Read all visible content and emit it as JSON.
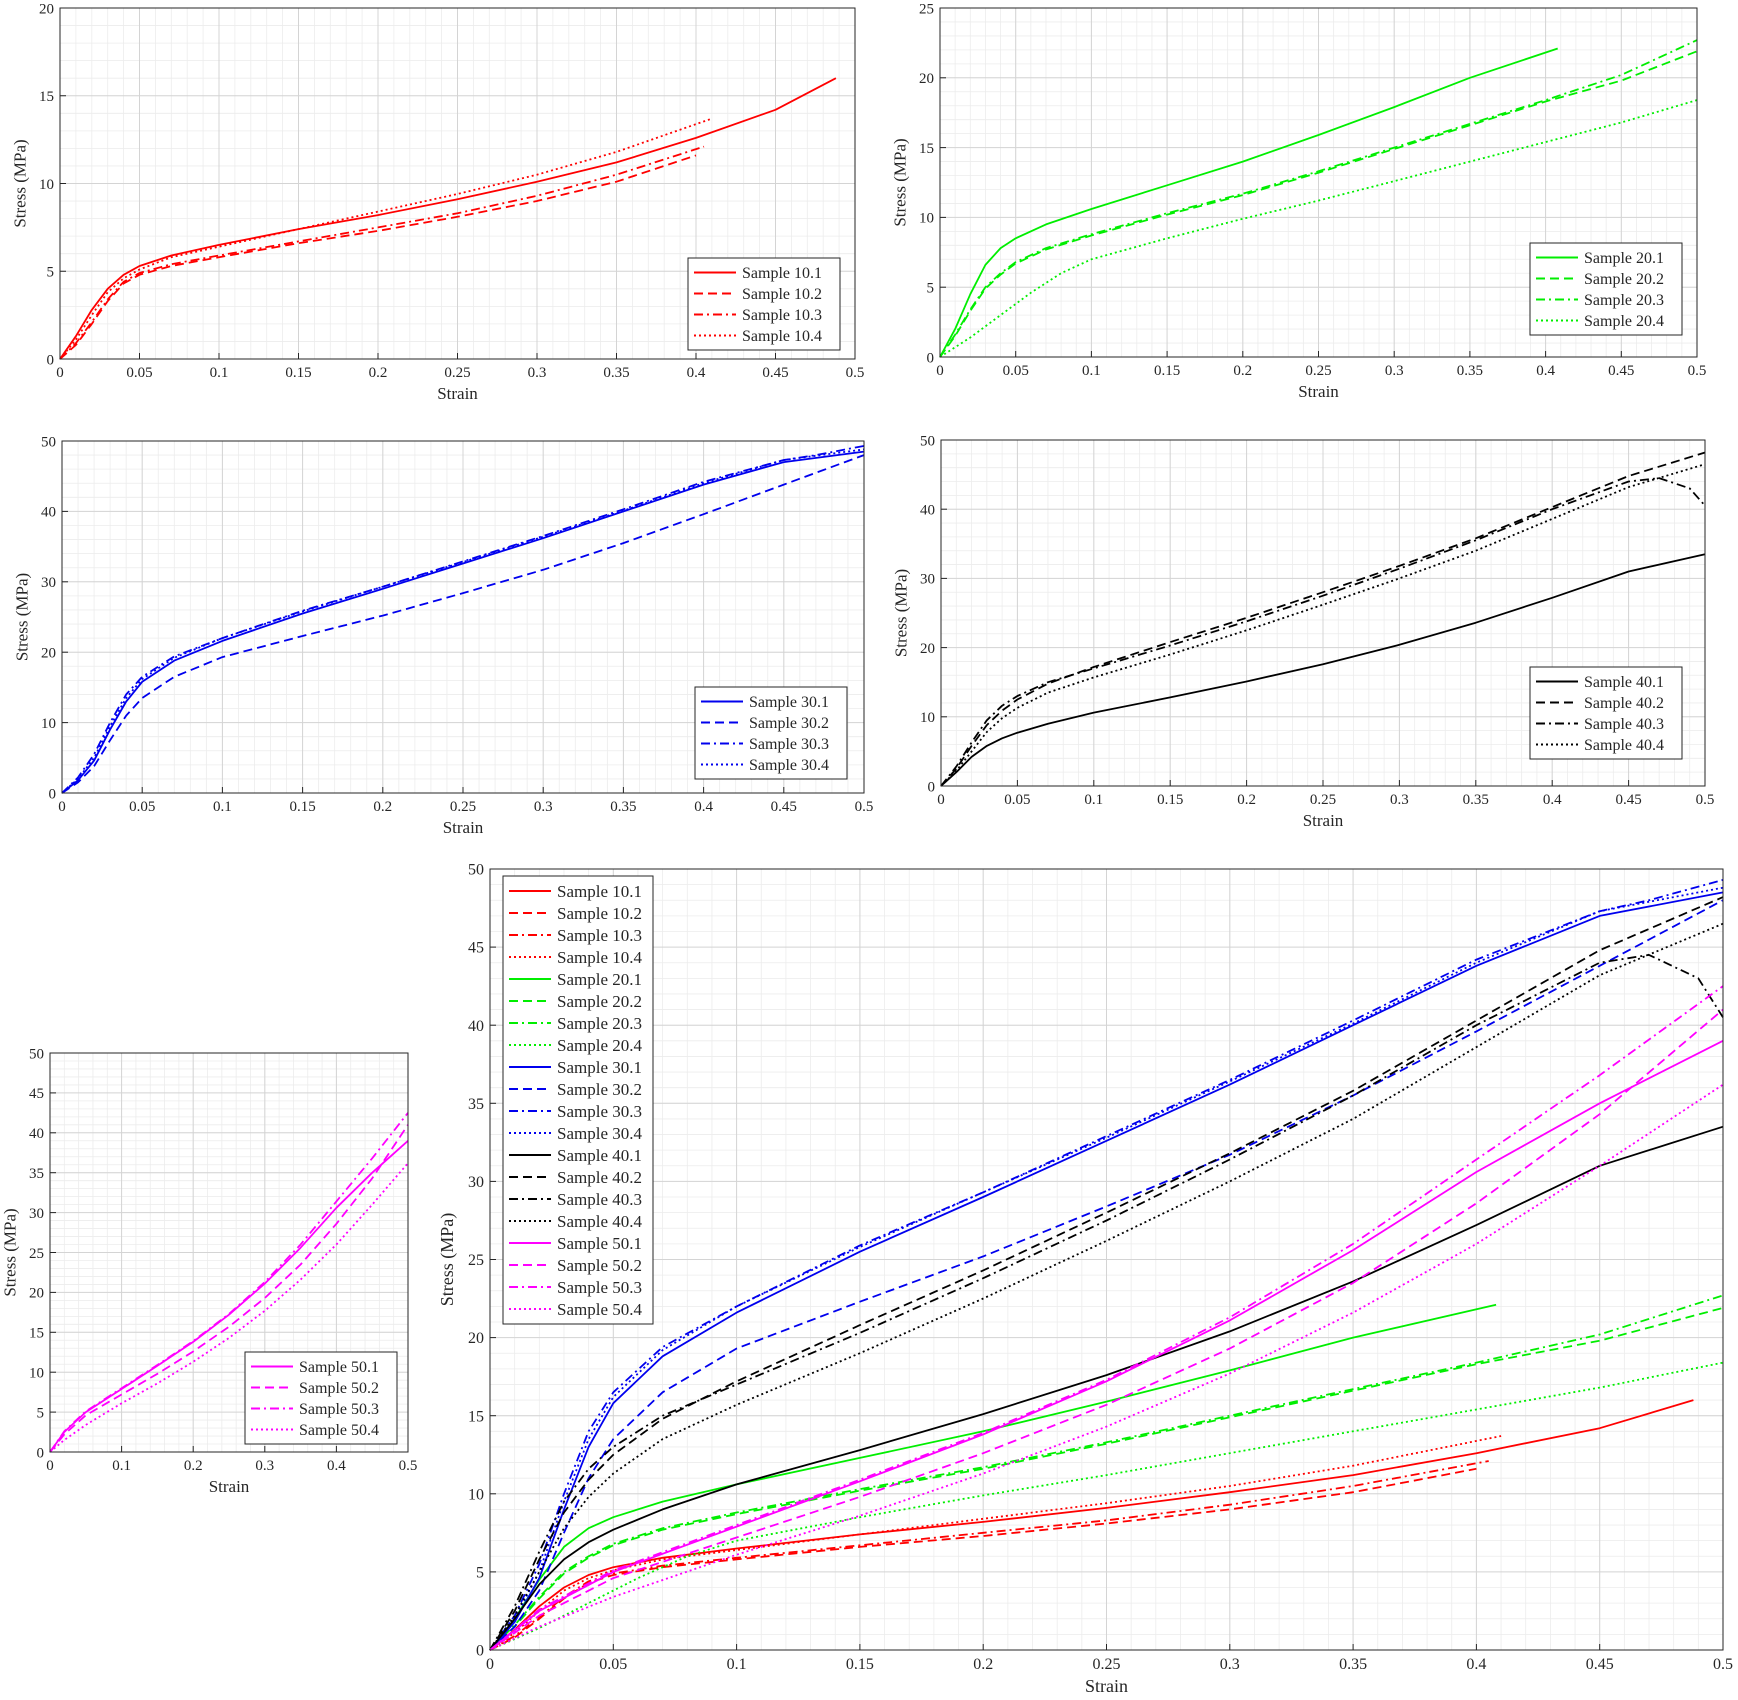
{
  "chart_data": [
    {
      "type": "line",
      "xlabel": "Strain",
      "ylabel": "Stress (MPa)",
      "xlim": [
        0,
        0.5
      ],
      "ylim": [
        0,
        20
      ],
      "xticks": [
        0,
        0.05,
        0.1,
        0.15,
        0.2,
        0.25,
        0.3,
        0.35,
        0.4,
        0.45,
        0.5
      ],
      "yticks": [
        0,
        5,
        10,
        15,
        20
      ],
      "grid": "major and minor",
      "legend_position": "bottom-right",
      "series": [
        {
          "name": "Sample 10.1",
          "color": "#ff0000",
          "style": "solid",
          "x": [
            0,
            0.01,
            0.02,
            0.03,
            0.04,
            0.05,
            0.07,
            0.1,
            0.15,
            0.2,
            0.25,
            0.3,
            0.35,
            0.4,
            0.45,
            0.488
          ],
          "y": [
            0,
            1.3,
            2.8,
            4.0,
            4.8,
            5.3,
            5.9,
            6.5,
            7.4,
            8.2,
            9.1,
            10.1,
            11.2,
            12.6,
            14.2,
            16.0
          ]
        },
        {
          "name": "Sample 10.2",
          "color": "#ff0000",
          "style": "dashed",
          "x": [
            0,
            0.01,
            0.02,
            0.03,
            0.04,
            0.05,
            0.07,
            0.1,
            0.15,
            0.2,
            0.25,
            0.3,
            0.35,
            0.4
          ],
          "y": [
            0,
            0.8,
            2.0,
            3.3,
            4.3,
            4.8,
            5.3,
            5.8,
            6.6,
            7.3,
            8.1,
            9.0,
            10.1,
            11.6
          ]
        },
        {
          "name": "Sample 10.3",
          "color": "#ff0000",
          "style": "dashdot",
          "x": [
            0,
            0.01,
            0.02,
            0.03,
            0.04,
            0.05,
            0.07,
            0.1,
            0.15,
            0.2,
            0.25,
            0.3,
            0.35,
            0.405
          ],
          "y": [
            0,
            0.9,
            2.1,
            3.4,
            4.4,
            4.9,
            5.4,
            5.9,
            6.7,
            7.5,
            8.3,
            9.3,
            10.5,
            12.1
          ]
        },
        {
          "name": "Sample 10.4",
          "color": "#ff0000",
          "style": "dotted",
          "x": [
            0,
            0.01,
            0.02,
            0.03,
            0.04,
            0.05,
            0.07,
            0.1,
            0.15,
            0.2,
            0.25,
            0.3,
            0.35,
            0.41
          ],
          "y": [
            0,
            1.1,
            2.5,
            3.8,
            4.6,
            5.1,
            5.8,
            6.4,
            7.4,
            8.4,
            9.4,
            10.5,
            11.8,
            13.7
          ]
        }
      ]
    },
    {
      "type": "line",
      "xlabel": "Strain",
      "ylabel": "Stress (MPa)",
      "xlim": [
        0,
        0.5
      ],
      "ylim": [
        0,
        25
      ],
      "xticks": [
        0,
        0.05,
        0.1,
        0.15,
        0.2,
        0.25,
        0.3,
        0.35,
        0.4,
        0.45,
        0.5
      ],
      "yticks": [
        0,
        5,
        10,
        15,
        20,
        25
      ],
      "grid": "major and minor",
      "legend_position": "bottom-right",
      "series": [
        {
          "name": "Sample 20.1",
          "color": "#00ee00",
          "style": "solid",
          "x": [
            0,
            0.01,
            0.02,
            0.03,
            0.04,
            0.05,
            0.07,
            0.1,
            0.15,
            0.2,
            0.25,
            0.3,
            0.35,
            0.408
          ],
          "y": [
            0,
            2.0,
            4.5,
            6.6,
            7.8,
            8.5,
            9.5,
            10.6,
            12.3,
            14.0,
            15.9,
            17.9,
            20.0,
            22.1
          ]
        },
        {
          "name": "Sample 20.2",
          "color": "#00ee00",
          "style": "dashed",
          "x": [
            0,
            0.01,
            0.02,
            0.03,
            0.04,
            0.05,
            0.07,
            0.1,
            0.15,
            0.2,
            0.25,
            0.3,
            0.35,
            0.4,
            0.45,
            0.5
          ],
          "y": [
            0,
            1.5,
            3.3,
            4.9,
            5.9,
            6.7,
            7.7,
            8.7,
            10.2,
            11.6,
            13.2,
            14.9,
            16.6,
            18.3,
            19.8,
            21.9
          ]
        },
        {
          "name": "Sample 20.3",
          "color": "#00ee00",
          "style": "dashdot",
          "x": [
            0,
            0.01,
            0.02,
            0.03,
            0.04,
            0.05,
            0.07,
            0.1,
            0.15,
            0.2,
            0.25,
            0.3,
            0.35,
            0.4,
            0.45,
            0.5
          ],
          "y": [
            0,
            1.6,
            3.4,
            5.0,
            6.0,
            6.8,
            7.8,
            8.8,
            10.3,
            11.7,
            13.3,
            15.0,
            16.7,
            18.4,
            20.2,
            22.7
          ]
        },
        {
          "name": "Sample 20.4",
          "color": "#00ee00",
          "style": "dotted",
          "x": [
            0,
            0.02,
            0.04,
            0.06,
            0.08,
            0.1,
            0.15,
            0.2,
            0.25,
            0.3,
            0.35,
            0.4,
            0.45,
            0.5
          ],
          "y": [
            0,
            1.4,
            3.0,
            4.6,
            6.0,
            7.0,
            8.5,
            9.9,
            11.2,
            12.6,
            14.0,
            15.4,
            16.8,
            18.4
          ]
        }
      ]
    },
    {
      "type": "line",
      "xlabel": "Strain",
      "ylabel": "Stress (MPa)",
      "xlim": [
        0,
        0.5
      ],
      "ylim": [
        0,
        50
      ],
      "xticks": [
        0,
        0.05,
        0.1,
        0.15,
        0.2,
        0.25,
        0.3,
        0.35,
        0.4,
        0.45,
        0.5
      ],
      "yticks": [
        0,
        10,
        20,
        30,
        40,
        50
      ],
      "grid": "major and minor",
      "legend_position": "bottom-right",
      "series": [
        {
          "name": "Sample 30.1",
          "color": "#0000ee",
          "style": "solid",
          "x": [
            0,
            0.01,
            0.02,
            0.03,
            0.04,
            0.05,
            0.07,
            0.1,
            0.15,
            0.2,
            0.25,
            0.3,
            0.35,
            0.4,
            0.45,
            0.5
          ],
          "y": [
            0,
            1.8,
            4.6,
            9.0,
            13.0,
            15.8,
            18.8,
            21.6,
            25.5,
            29.0,
            32.6,
            36.2,
            40.0,
            43.8,
            47.0,
            48.5
          ]
        },
        {
          "name": "Sample 30.2",
          "color": "#0000ee",
          "style": "dashed",
          "x": [
            0,
            0.01,
            0.02,
            0.03,
            0.04,
            0.05,
            0.07,
            0.1,
            0.15,
            0.2,
            0.25,
            0.3,
            0.35,
            0.4,
            0.45,
            0.5
          ],
          "y": [
            0,
            1.5,
            3.8,
            7.5,
            11.0,
            13.5,
            16.5,
            19.3,
            22.3,
            25.2,
            28.4,
            31.7,
            35.5,
            39.6,
            43.8,
            48.0
          ]
        },
        {
          "name": "Sample 30.3",
          "color": "#0000ee",
          "style": "dashdot",
          "x": [
            0,
            0.01,
            0.02,
            0.03,
            0.04,
            0.05,
            0.07,
            0.1,
            0.15,
            0.2,
            0.25,
            0.3,
            0.35,
            0.4,
            0.45,
            0.47,
            0.5
          ],
          "y": [
            0,
            2.2,
            5.5,
            10.0,
            14.0,
            16.5,
            19.4,
            22.0,
            25.9,
            29.3,
            32.9,
            36.5,
            40.3,
            44.2,
            47.3,
            48.0,
            49.3
          ]
        },
        {
          "name": "Sample 30.4",
          "color": "#0000ee",
          "style": "dotted",
          "x": [
            0,
            0.01,
            0.02,
            0.03,
            0.04,
            0.05,
            0.07,
            0.1,
            0.15,
            0.2,
            0.25,
            0.3,
            0.35,
            0.4,
            0.45,
            0.5
          ],
          "y": [
            0,
            2.0,
            5.0,
            9.5,
            13.5,
            16.2,
            19.2,
            22.0,
            25.8,
            29.3,
            32.8,
            36.4,
            40.1,
            44.0,
            47.3,
            48.8
          ]
        }
      ]
    },
    {
      "type": "line",
      "xlabel": "Strain",
      "ylabel": "Stress (MPa)",
      "xlim": [
        0,
        0.5
      ],
      "ylim": [
        0,
        50
      ],
      "xticks": [
        0,
        0.05,
        0.1,
        0.15,
        0.2,
        0.25,
        0.3,
        0.35,
        0.4,
        0.45,
        0.5
      ],
      "yticks": [
        0,
        10,
        20,
        30,
        40,
        50
      ],
      "grid": "major and minor",
      "legend_position": "bottom-right",
      "series": [
        {
          "name": "Sample 40.1",
          "color": "#000000",
          "style": "solid",
          "x": [
            0,
            0.01,
            0.02,
            0.03,
            0.04,
            0.05,
            0.07,
            0.1,
            0.15,
            0.2,
            0.25,
            0.3,
            0.35,
            0.4,
            0.45,
            0.5
          ],
          "y": [
            0,
            2.0,
            4.2,
            5.8,
            6.9,
            7.7,
            9.0,
            10.6,
            12.8,
            15.1,
            17.6,
            20.4,
            23.6,
            27.2,
            31.0,
            33.5
          ]
        },
        {
          "name": "Sample 40.2",
          "color": "#000000",
          "style": "dashed",
          "x": [
            0,
            0.01,
            0.02,
            0.03,
            0.04,
            0.05,
            0.07,
            0.1,
            0.15,
            0.2,
            0.25,
            0.3,
            0.35,
            0.4,
            0.45,
            0.5
          ],
          "y": [
            0,
            2.5,
            5.8,
            8.8,
            10.9,
            12.5,
            14.8,
            17.2,
            20.8,
            24.3,
            28.0,
            31.8,
            35.8,
            40.3,
            44.8,
            48.2
          ]
        },
        {
          "name": "Sample 40.3",
          "color": "#000000",
          "style": "dashdot",
          "x": [
            0,
            0.01,
            0.02,
            0.03,
            0.04,
            0.05,
            0.07,
            0.1,
            0.15,
            0.2,
            0.25,
            0.3,
            0.35,
            0.4,
            0.45,
            0.47,
            0.49,
            0.5
          ],
          "y": [
            0,
            2.8,
            6.3,
            9.5,
            11.6,
            13.0,
            15.0,
            17.0,
            20.3,
            23.8,
            27.5,
            31.4,
            35.5,
            40.0,
            44.0,
            44.5,
            43.0,
            40.5
          ]
        },
        {
          "name": "Sample 40.4",
          "color": "#000000",
          "style": "dotted",
          "x": [
            0,
            0.01,
            0.02,
            0.03,
            0.04,
            0.05,
            0.07,
            0.1,
            0.15,
            0.2,
            0.25,
            0.3,
            0.35,
            0.4,
            0.45,
            0.5
          ],
          "y": [
            0,
            2.2,
            5.0,
            7.8,
            9.8,
            11.3,
            13.5,
            15.7,
            19.0,
            22.5,
            26.2,
            30.0,
            34.0,
            38.6,
            43.2,
            46.5
          ]
        }
      ]
    },
    {
      "type": "line",
      "xlabel": "Strain",
      "ylabel": "Stress (MPa)",
      "xlim": [
        0,
        0.5
      ],
      "ylim": [
        0,
        50
      ],
      "xticks": [
        0,
        0.1,
        0.2,
        0.3,
        0.4,
        0.5
      ],
      "yticks": [
        0,
        5,
        10,
        15,
        20,
        25,
        30,
        35,
        40,
        45,
        50
      ],
      "grid": "major and minor",
      "legend_position": "bottom-right",
      "series": [
        {
          "name": "Sample 50.1",
          "color": "#ff00ff",
          "style": "solid",
          "x": [
            0,
            0.02,
            0.05,
            0.1,
            0.15,
            0.2,
            0.25,
            0.3,
            0.35,
            0.4,
            0.45,
            0.5
          ],
          "y": [
            0,
            2.5,
            5.0,
            7.9,
            10.8,
            13.8,
            17.2,
            21.1,
            25.6,
            30.6,
            35.0,
            39.0
          ]
        },
        {
          "name": "Sample 50.2",
          "color": "#ff00ff",
          "style": "dashed",
          "x": [
            0,
            0.02,
            0.05,
            0.1,
            0.15,
            0.2,
            0.25,
            0.3,
            0.35,
            0.4,
            0.45,
            0.5
          ],
          "y": [
            0,
            2.2,
            4.6,
            7.2,
            9.8,
            12.6,
            15.7,
            19.3,
            23.5,
            28.6,
            34.3,
            41.0
          ]
        },
        {
          "name": "Sample 50.3",
          "color": "#ff00ff",
          "style": "dashdot",
          "x": [
            0,
            0.02,
            0.05,
            0.1,
            0.15,
            0.2,
            0.25,
            0.3,
            0.35,
            0.4,
            0.45,
            0.5
          ],
          "y": [
            0,
            2.6,
            5.1,
            8.0,
            10.9,
            13.9,
            17.3,
            21.3,
            26.0,
            31.4,
            36.8,
            42.5
          ]
        },
        {
          "name": "Sample 50.4",
          "color": "#ff00ff",
          "style": "dotted",
          "x": [
            0,
            0.02,
            0.05,
            0.1,
            0.15,
            0.2,
            0.25,
            0.3,
            0.35,
            0.4,
            0.45,
            0.5
          ],
          "y": [
            0,
            1.5,
            3.4,
            6.1,
            8.6,
            11.3,
            14.3,
            17.7,
            21.6,
            26.0,
            31.0,
            36.2
          ]
        }
      ]
    },
    {
      "type": "line",
      "combined": true,
      "xlabel": "Strain",
      "ylabel": "Stress (MPa)",
      "xlim": [
        0,
        0.5
      ],
      "ylim": [
        0,
        50
      ],
      "xticks": [
        0,
        0.05,
        0.1,
        0.15,
        0.2,
        0.25,
        0.3,
        0.35,
        0.4,
        0.45,
        0.5
      ],
      "yticks": [
        0,
        5,
        10,
        15,
        20,
        25,
        30,
        35,
        40,
        45,
        50
      ],
      "grid": "major and minor",
      "legend_position": "top-left",
      "series_from_panels": [
        0,
        1,
        2,
        3,
        4
      ]
    }
  ]
}
